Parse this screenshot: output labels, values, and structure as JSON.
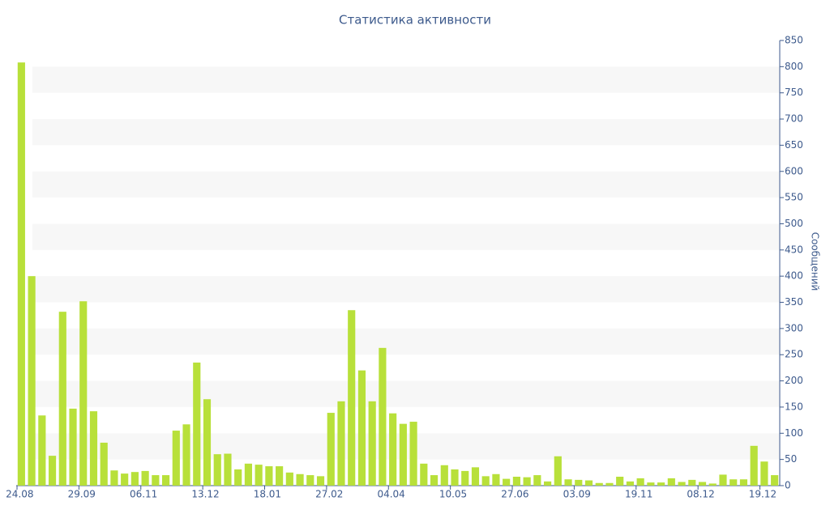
{
  "chart_data": {
    "type": "bar",
    "title": "Статистика активности",
    "y_label": "Сообщений",
    "categories": [
      "24.08",
      null,
      null,
      null,
      null,
      null,
      "29.09",
      null,
      null,
      null,
      null,
      null,
      "06.11",
      null,
      null,
      null,
      null,
      null,
      "13.12",
      null,
      null,
      null,
      null,
      null,
      "18.01",
      null,
      null,
      null,
      null,
      null,
      "27.02",
      null,
      null,
      null,
      null,
      null,
      "04.04",
      null,
      null,
      null,
      null,
      null,
      "10.05",
      null,
      null,
      null,
      null,
      null,
      "27.06",
      null,
      null,
      null,
      null,
      null,
      "03.09",
      null,
      null,
      null,
      null,
      null,
      "19.11",
      null,
      null,
      null,
      null,
      null,
      "08.12",
      null,
      null,
      null,
      null,
      null,
      "19.12",
      null
    ],
    "values": [
      808,
      400,
      134,
      57,
      332,
      147,
      352,
      142,
      82,
      29,
      23,
      26,
      28,
      20,
      20,
      105,
      117,
      235,
      165,
      60,
      61,
      31,
      42,
      40,
      37,
      37,
      25,
      22,
      20,
      18,
      139,
      161,
      335,
      220,
      161,
      263,
      138,
      118,
      122,
      42,
      20,
      39,
      31,
      28,
      35,
      18,
      22,
      13,
      17,
      16,
      20,
      8,
      56,
      12,
      11,
      10,
      5,
      5,
      17,
      8,
      14,
      6,
      6,
      14,
      7,
      11,
      7,
      4,
      21,
      12,
      12,
      76,
      46,
      20
    ],
    "color": "#b8e03a",
    "ylim": [
      0,
      850
    ],
    "yticks": [
      0,
      50,
      100,
      150,
      200,
      250,
      300,
      350,
      400,
      450,
      500,
      550,
      600,
      650,
      700,
      750,
      800,
      850
    ],
    "y_axis_side": "right",
    "grid": true
  }
}
